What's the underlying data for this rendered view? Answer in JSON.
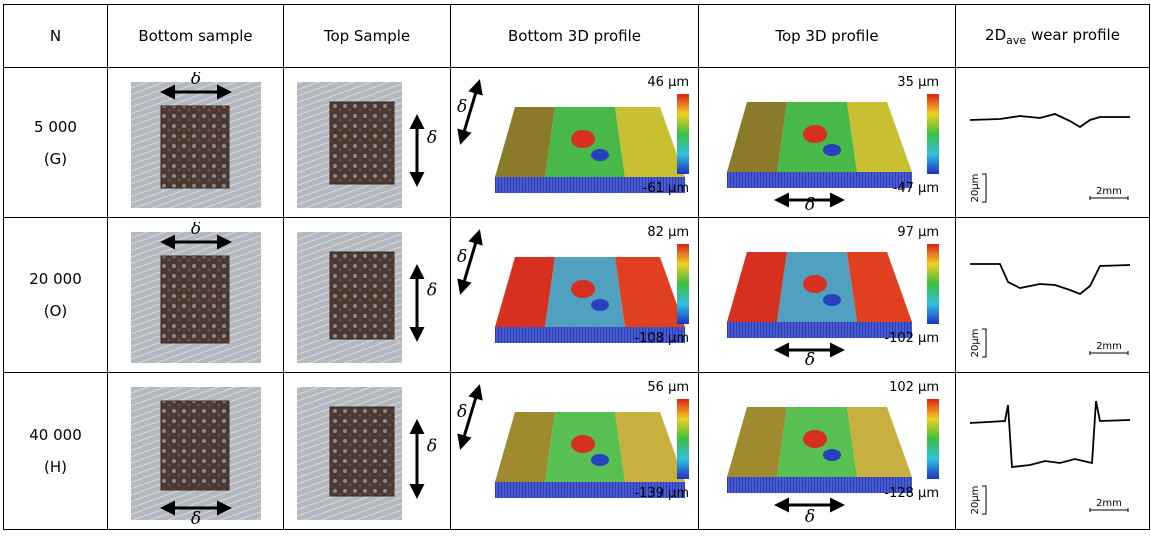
{
  "header": {
    "cells": [
      "N",
      "Bottom sample",
      "Top Sample",
      "Bottom 3D profile",
      "Top 3D profile"
    ],
    "wear": {
      "base": "2D",
      "sub": "ave",
      "rest": "wear profile"
    }
  },
  "symbols": {
    "delta": "δ",
    "scale_y": "20µm",
    "scale_x": "2mm"
  },
  "rows": [
    {
      "n": "5 000",
      "label": "(G)",
      "bottom_3d": {
        "max": "46 µm",
        "min": "-61 µm"
      },
      "top_3d": {
        "max": "35 µm",
        "min": "-47 µm"
      }
    },
    {
      "n": "20 000",
      "label": "(O)",
      "bottom_3d": {
        "max": "82 µm",
        "min": "-108 µm"
      },
      "top_3d": {
        "max": "97 µm",
        "min": "-102 µm"
      }
    },
    {
      "n": "40 000",
      "label": "(H)",
      "bottom_3d": {
        "max": "56 µm",
        "min": "-139 µm"
      },
      "top_3d": {
        "max": "102 µm",
        "min": "-128 µm"
      }
    }
  ]
}
